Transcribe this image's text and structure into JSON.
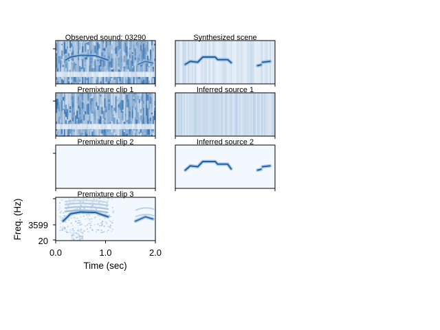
{
  "chart_data": [
    {
      "type": "heatmap",
      "title": "Observed sound: 03290",
      "content": "dense",
      "tracks": [
        {
          "points": [
            [
              0.2,
              0.55
            ],
            [
              0.3,
              0.62
            ],
            [
              0.5,
              0.66
            ],
            [
              0.8,
              0.65
            ],
            [
              1.05,
              0.55
            ]
          ],
          "strength": 0.9
        },
        {
          "points": [
            [
              1.65,
              0.45
            ],
            [
              1.8,
              0.52
            ],
            [
              1.95,
              0.48
            ]
          ],
          "strength": 0.8
        }
      ]
    },
    {
      "type": "heatmap",
      "title": "Synthesized scene",
      "content": "light",
      "tracks": [
        {
          "points": [
            [
              0.2,
              0.45
            ],
            [
              0.3,
              0.52
            ],
            [
              0.45,
              0.5
            ],
            [
              0.55,
              0.62
            ],
            [
              0.8,
              0.62
            ],
            [
              0.85,
              0.56
            ],
            [
              1.05,
              0.56
            ],
            [
              1.12,
              0.49
            ]
          ],
          "strength": 1
        },
        {
          "points": [
            [
              1.65,
              0.42
            ],
            [
              1.72,
              0.44
            ]
          ],
          "strength": 1
        },
        {
          "points": [
            [
              1.75,
              0.5
            ],
            [
              1.9,
              0.52
            ]
          ],
          "strength": 1
        }
      ]
    },
    {
      "type": "heatmap",
      "title": "Premixture clip 1",
      "content": "noise",
      "tracks": []
    },
    {
      "type": "heatmap",
      "title": "Inferred source 1",
      "content": "uniform",
      "tracks": []
    },
    {
      "type": "heatmap",
      "title": "Premixture clip 2",
      "content": "empty",
      "tracks": []
    },
    {
      "type": "heatmap",
      "title": "Inferred source 2",
      "content": "empty",
      "tracks": [
        {
          "points": [
            [
              0.2,
              0.42
            ],
            [
              0.3,
              0.52
            ],
            [
              0.45,
              0.5
            ],
            [
              0.55,
              0.62
            ],
            [
              0.8,
              0.62
            ],
            [
              0.85,
              0.56
            ],
            [
              1.05,
              0.56
            ],
            [
              1.12,
              0.45
            ]
          ],
          "strength": 1
        },
        {
          "points": [
            [
              1.65,
              0.42
            ],
            [
              1.72,
              0.44
            ]
          ],
          "strength": 1
        },
        {
          "points": [
            [
              1.75,
              0.5
            ],
            [
              1.9,
              0.52
            ]
          ],
          "strength": 1
        }
      ]
    },
    {
      "type": "heatmap",
      "title": "Premixture clip 3",
      "content": "bird",
      "tracks": [
        {
          "points": [
            [
              0.15,
              0.45
            ],
            [
              0.3,
              0.62
            ],
            [
              0.5,
              0.66
            ],
            [
              0.8,
              0.65
            ],
            [
              1.05,
              0.55
            ]
          ],
          "strength": 1
        },
        {
          "points": [
            [
              1.6,
              0.45
            ],
            [
              1.8,
              0.55
            ],
            [
              1.95,
              0.5
            ]
          ],
          "strength": 0.9
        }
      ],
      "xlabel": "Time (sec)",
      "ylabel": "Freq. (Hz)",
      "xticks": [
        "0.0",
        "1.0",
        "2.0"
      ],
      "yticks": [
        "20",
        "3599"
      ],
      "xlim": [
        0,
        2
      ],
      "ylim": [
        20,
        8000
      ]
    }
  ],
  "colormap": {
    "low": "#f7fbff",
    "high": "#08519c"
  }
}
